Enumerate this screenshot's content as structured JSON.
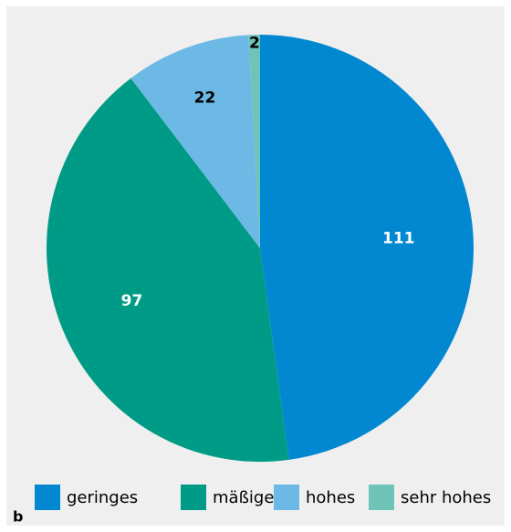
{
  "chart_data": {
    "type": "pie",
    "categories": [
      "geringes",
      "mäßiges",
      "hohes",
      "sehr hohes"
    ],
    "values": [
      111,
      97,
      22,
      2
    ],
    "colors": [
      "#0288d1",
      "#009b86",
      "#6bb9e4",
      "#6fc4b8"
    ],
    "panel_label": "b"
  }
}
